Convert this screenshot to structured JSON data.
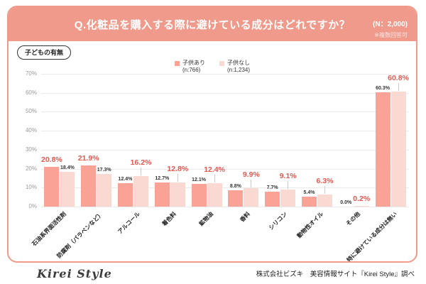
{
  "colors": {
    "banner": "#f09a8c",
    "panel_border": "#ef9a8b",
    "bar_with_kids": "#f9a295",
    "bar_no_kids": "#fbd9d3",
    "highlight_label": "#e0584f",
    "grid": "#eaeaea",
    "axis_text": "#999999"
  },
  "header": {
    "title": "Q.化粧品を購入する際に避けている成分はどれですか？",
    "n_label": "(N：2,000)",
    "note": "※複数回答可"
  },
  "tag": "子どもの有無",
  "legend": {
    "items": [
      {
        "label": "子供あり",
        "sub": "(n:766)"
      },
      {
        "label": "子供なし",
        "sub": "(n:1,234)"
      }
    ]
  },
  "chart_data": {
    "type": "bar",
    "title": "Q.化粧品を購入する際に避けている成分はどれですか？ (N：2,000) ※複数回答可",
    "categories": [
      "石油系界面活性剤",
      "防腐剤（パラベンなど）",
      "アルコール",
      "着色料",
      "鉱物油",
      "香料",
      "シリコン",
      "動物性オイル",
      "その他",
      "特に避けている成分は無い"
    ],
    "series": [
      {
        "name": "子供あり (n:766)",
        "values": [
          20.8,
          21.9,
          12.4,
          12.7,
          12.1,
          8.8,
          7.7,
          5.4,
          0.0,
          60.3
        ]
      },
      {
        "name": "子供なし (n:1,234)",
        "values": [
          18.4,
          17.3,
          16.2,
          12.8,
          12.4,
          9.9,
          9.1,
          6.3,
          0.2,
          60.8
        ]
      }
    ],
    "ylim": [
      0,
      70
    ],
    "yticks": [
      0,
      10,
      20,
      30,
      40,
      50,
      60,
      70
    ],
    "ytick_suffix": "%",
    "xlabel": "",
    "ylabel": "",
    "grid": true,
    "legend_position": "top-center",
    "annotation_rule": "higher value of each pair is highlighted in red"
  },
  "footer": {
    "logo": "Kirei Style",
    "source": "株式会社ビズキ　美容情報サイト『Kirei Style』調べ"
  }
}
